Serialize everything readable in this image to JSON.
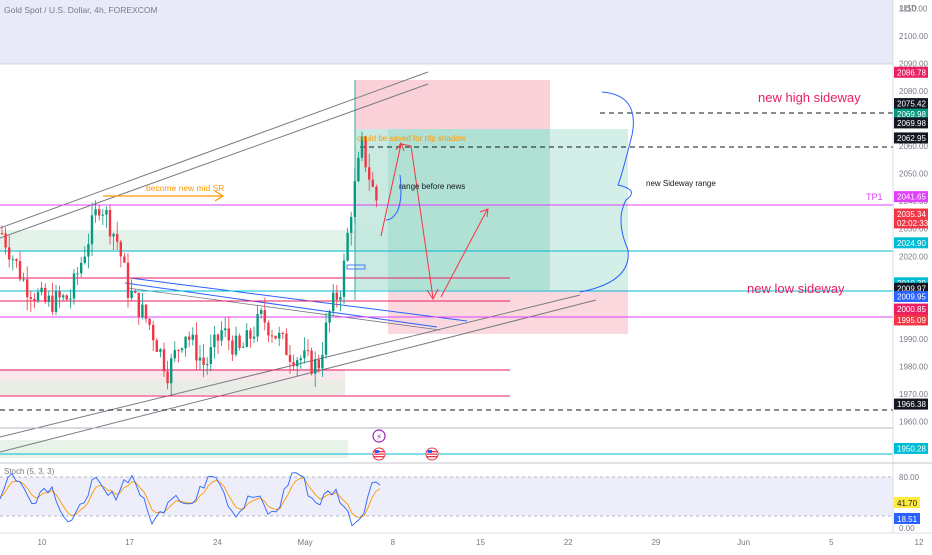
{
  "header": {
    "title": "Gold Spot / U.S. Dollar, 4h, FOREXCOM",
    "currency": "USD"
  },
  "chart_data": {
    "type": "candlestick",
    "symbol": "XAUUSD",
    "interval": "4h",
    "ylim": [
      1945,
      2113
    ],
    "y_ticks": [
      2110,
      2100,
      2090,
      2080,
      2070,
      2060,
      2050,
      2040,
      2030,
      2020,
      2010,
      2000,
      1990,
      1980,
      1970,
      1960
    ],
    "x_ticks": [
      {
        "label": "10",
        "idx": 0
      },
      {
        "label": "17",
        "idx": 1
      },
      {
        "label": "24",
        "idx": 2
      },
      {
        "label": "May",
        "idx": 3
      },
      {
        "label": "8",
        "idx": 4
      },
      {
        "label": "15",
        "idx": 5
      },
      {
        "label": "22",
        "idx": 6
      },
      {
        "label": "29",
        "idx": 7
      },
      {
        "label": "Jun",
        "idx": 8
      },
      {
        "label": "5",
        "idx": 9
      },
      {
        "label": "12",
        "idx": 10
      }
    ],
    "price_labels": [
      {
        "value": "2086.78",
        "price": 2086.78,
        "color": "#e91e63"
      },
      {
        "value": "2075.42",
        "price": 2075.42,
        "color": "#131722"
      },
      {
        "value": "2069.98",
        "price": 2071.6,
        "color": "#089981"
      },
      {
        "value": "2069.98",
        "price": 2068.4,
        "color": "#131722"
      },
      {
        "value": "2062.95",
        "price": 2062.95,
        "color": "#131722"
      },
      {
        "value": "2041.65",
        "price": 2041.65,
        "color": "#e040fb"
      },
      {
        "value": "2035.34",
        "price": 2035.34,
        "color": "#f23645"
      },
      {
        "value": "02:02:33",
        "price": 2032.1,
        "color": "#f23645"
      },
      {
        "value": "2024.90",
        "price": 2024.9,
        "color": "#00bcd4"
      },
      {
        "value": "2010.39",
        "price": 2010.39,
        "color": "#00bcd4"
      },
      {
        "value": "2009.97",
        "price": 2008.4,
        "color": "#131722"
      },
      {
        "value": "2009.95",
        "price": 2005.4,
        "color": "#2962ff"
      },
      {
        "value": "2000.85",
        "price": 2000.85,
        "color": "#e91e63"
      },
      {
        "value": "1995.09",
        "price": 1996.9,
        "color": "#f23645"
      },
      {
        "value": "1966.38",
        "price": 1966.38,
        "color": "#131722"
      },
      {
        "value": "1950.28",
        "price": 1950.28,
        "color": "#00bcd4"
      }
    ],
    "annotations": {
      "new_high": "new high sideway",
      "new_low": "new low sideway",
      "tp1": "TP1",
      "mid_sr": "become new mid SR",
      "nfp": "could be saved for nfp shadow",
      "range_news": "range before news",
      "new_range": "new Sideway range"
    },
    "stoch": {
      "label": "Stoch (5, 3, 3)",
      "k_value": "41.70",
      "d_value": "18.51",
      "levels": [
        "80.00",
        "0.00"
      ],
      "k_color": "#2962ff",
      "d_color": "#ff9800"
    },
    "colors": {
      "up": "#089981",
      "down": "#f23645"
    }
  }
}
